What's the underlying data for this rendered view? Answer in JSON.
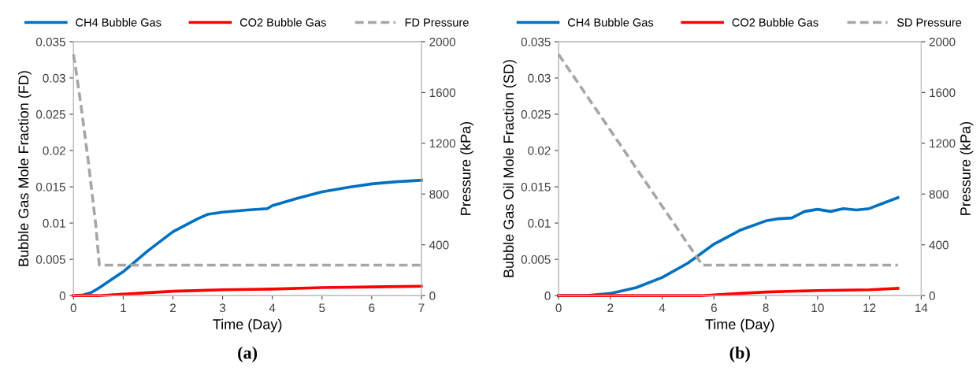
{
  "chart_data": [
    {
      "type": "line",
      "xlabel": "Time (Day)",
      "ylabel": "Bubble Gas Mole Fraction (FD)",
      "y2label": "Pressure (kPa)",
      "annotations": [
        "(a)"
      ],
      "xlim": [
        0,
        7
      ],
      "xticks": [
        0,
        1,
        2,
        3,
        4,
        5,
        6,
        7
      ],
      "ylim": [
        0,
        0.035
      ],
      "yticks": [
        0,
        0.005,
        0.01,
        0.015,
        0.02,
        0.025,
        0.03,
        0.035
      ],
      "y2lim": [
        0,
        2000
      ],
      "y2ticks": [
        0,
        400,
        800,
        1200,
        1600,
        2000
      ],
      "grid": false,
      "legend": "top",
      "marker": "none",
      "series": [
        {
          "name": "CH4 Bubble Gas",
          "color": "#0070c0",
          "line_style": "solid",
          "x": [
            0,
            0.2,
            0.35,
            0.5,
            1,
            1.5,
            2,
            2.5,
            2.7,
            3,
            3.5,
            3.9,
            4,
            4.5,
            5,
            5.5,
            6,
            6.5,
            7
          ],
          "values": [
            0,
            0.0001,
            0.0004,
            0.001,
            0.0033,
            0.0062,
            0.0088,
            0.0106,
            0.0112,
            0.0115,
            0.0118,
            0.012,
            0.0124,
            0.0134,
            0.0143,
            0.0149,
            0.0154,
            0.0157,
            0.0159
          ]
        },
        {
          "name": "CO2 Bubble Gas",
          "color": "#ff0000",
          "line_style": "solid",
          "x": [
            0,
            0.5,
            1,
            2,
            3,
            4,
            5,
            6,
            7
          ],
          "values": [
            0,
            0,
            0.0002,
            0.0006,
            0.0008,
            0.0009,
            0.0011,
            0.0012,
            0.0013
          ]
        },
        {
          "name": "FD Pressure",
          "color": "#a6a6a6",
          "line_style": "dashed",
          "axis": "y2",
          "x": [
            0,
            0.04,
            0.15,
            0.3,
            0.45,
            0.52,
            7
          ],
          "values": [
            1900,
            1800,
            1500,
            1050,
            550,
            240,
            240
          ]
        }
      ]
    },
    {
      "type": "line",
      "xlabel": "Time (Day)",
      "ylabel": "Bubble Gas Oil Mole Fraction (SD)",
      "y2label": "Pressure (kPa)",
      "annotations": [
        "(b)"
      ],
      "xlim": [
        0,
        14
      ],
      "xticks": [
        0,
        2,
        4,
        6,
        8,
        10,
        12,
        14
      ],
      "ylim": [
        0,
        0.035
      ],
      "yticks": [
        0,
        0.005,
        0.01,
        0.015,
        0.02,
        0.025,
        0.03,
        0.035
      ],
      "y2lim": [
        0,
        2000
      ],
      "y2ticks": [
        0,
        400,
        800,
        1200,
        1600,
        2000
      ],
      "grid": false,
      "legend": "top",
      "marker": "none",
      "series": [
        {
          "name": "CH4 Bubble Gas",
          "color": "#0070c0",
          "line_style": "solid",
          "x": [
            0,
            1,
            2,
            3,
            4,
            5,
            6,
            7,
            8,
            8.5,
            9,
            9.5,
            10,
            10.5,
            11,
            11.5,
            12,
            12.5,
            13.1
          ],
          "values": [
            0,
            0,
            0.0003,
            0.0011,
            0.0025,
            0.0045,
            0.0071,
            0.009,
            0.0103,
            0.0106,
            0.0107,
            0.0116,
            0.0119,
            0.0116,
            0.012,
            0.0118,
            0.012,
            0.0127,
            0.0135
          ]
        },
        {
          "name": "CO2 Bubble Gas",
          "color": "#ff0000",
          "line_style": "solid",
          "x": [
            0,
            5.5,
            7,
            8,
            10,
            12,
            13.1
          ],
          "values": [
            0,
            0,
            0.0003,
            0.0005,
            0.0007,
            0.0008,
            0.001
          ]
        },
        {
          "name": "SD Pressure",
          "color": "#a6a6a6",
          "line_style": "dashed",
          "axis": "y2",
          "x": [
            0,
            5.55,
            13.1
          ],
          "values": [
            1900,
            240,
            240
          ]
        }
      ]
    }
  ]
}
